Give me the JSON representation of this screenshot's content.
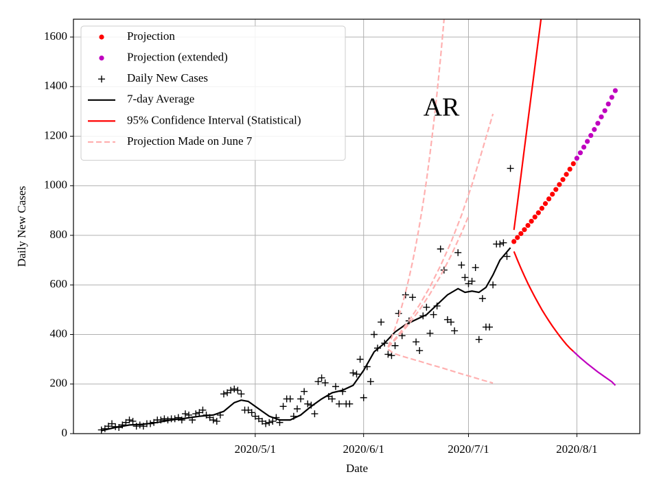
{
  "chart_data": {
    "type": "line",
    "annotation": "AR",
    "xlabel": "Date",
    "ylabel": "Daily New Cases",
    "xlim": [
      "2020/3/10",
      "2020/8/19"
    ],
    "xticks": [
      "2020/5/1",
      "2020/6/1",
      "2020/7/1",
      "2020/8/1"
    ],
    "ylim": [
      0,
      1672
    ],
    "yticks": [
      0,
      200,
      400,
      600,
      800,
      1000,
      1200,
      1400,
      1600
    ],
    "grid": true,
    "legend": "upper left",
    "series": [
      {
        "name": "Projection",
        "color": "#ff0000",
        "marker": "dot",
        "x": [
          "2020/7/14",
          "2020/7/15",
          "2020/7/16",
          "2020/7/17",
          "2020/7/18",
          "2020/7/19",
          "2020/7/20",
          "2020/7/21",
          "2020/7/22",
          "2020/7/23",
          "2020/7/24",
          "2020/7/25",
          "2020/7/26",
          "2020/7/27",
          "2020/7/28",
          "2020/7/29",
          "2020/7/30",
          "2020/7/31"
        ],
        "values": [
          775,
          791,
          807,
          823,
          840,
          857,
          874,
          891,
          909,
          928,
          947,
          966,
          985,
          1005,
          1025,
          1046,
          1067,
          1089
        ]
      },
      {
        "name": "Projection (extended)",
        "color": "#bf00bf",
        "marker": "dot",
        "x": [
          "2020/8/1",
          "2020/8/2",
          "2020/8/3",
          "2020/8/4",
          "2020/8/5",
          "2020/8/6",
          "2020/8/7",
          "2020/8/8",
          "2020/8/9",
          "2020/8/10",
          "2020/8/11",
          "2020/8/12"
        ],
        "values": [
          1111,
          1133,
          1156,
          1179,
          1203,
          1227,
          1252,
          1278,
          1303,
          1330,
          1357,
          1384
        ]
      },
      {
        "name": "Daily New Cases",
        "color": "#000000",
        "marker": "plus",
        "x": [
          "2020/3/18",
          "2020/3/19",
          "2020/3/20",
          "2020/3/21",
          "2020/3/22",
          "2020/3/23",
          "2020/3/24",
          "2020/3/25",
          "2020/3/26",
          "2020/3/27",
          "2020/3/28",
          "2020/3/29",
          "2020/3/30",
          "2020/3/31",
          "2020/4/1",
          "2020/4/2",
          "2020/4/3",
          "2020/4/4",
          "2020/4/5",
          "2020/4/6",
          "2020/4/7",
          "2020/4/8",
          "2020/4/9",
          "2020/4/10",
          "2020/4/11",
          "2020/4/12",
          "2020/4/13",
          "2020/4/14",
          "2020/4/15",
          "2020/4/16",
          "2020/4/17",
          "2020/4/18",
          "2020/4/19",
          "2020/4/20",
          "2020/4/21",
          "2020/4/22",
          "2020/4/23",
          "2020/4/24",
          "2020/4/25",
          "2020/4/26",
          "2020/4/27",
          "2020/4/28",
          "2020/4/29",
          "2020/4/30",
          "2020/5/1",
          "2020/5/2",
          "2020/5/3",
          "2020/5/4",
          "2020/5/5",
          "2020/5/6",
          "2020/5/7",
          "2020/5/8",
          "2020/5/9",
          "2020/5/10",
          "2020/5/11",
          "2020/5/12",
          "2020/5/13",
          "2020/5/14",
          "2020/5/15",
          "2020/5/16",
          "2020/5/17",
          "2020/5/18",
          "2020/5/19",
          "2020/5/20",
          "2020/5/21",
          "2020/5/22",
          "2020/5/23",
          "2020/5/24",
          "2020/5/25",
          "2020/5/26",
          "2020/5/27",
          "2020/5/28",
          "2020/5/29",
          "2020/5/30",
          "2020/5/31",
          "2020/6/1",
          "2020/6/2",
          "2020/6/3",
          "2020/6/4",
          "2020/6/5",
          "2020/6/6",
          "2020/6/7",
          "2020/6/8",
          "2020/6/9",
          "2020/6/10",
          "2020/6/11",
          "2020/6/12",
          "2020/6/13",
          "2020/6/14",
          "2020/6/15",
          "2020/6/16",
          "2020/6/17",
          "2020/6/18",
          "2020/6/19",
          "2020/6/20",
          "2020/6/21",
          "2020/6/22",
          "2020/6/23",
          "2020/6/24",
          "2020/6/25",
          "2020/6/26",
          "2020/6/27",
          "2020/6/28",
          "2020/6/29",
          "2020/6/30",
          "2020/7/1",
          "2020/7/2",
          "2020/7/3",
          "2020/7/4",
          "2020/7/5",
          "2020/7/6",
          "2020/7/7",
          "2020/7/8",
          "2020/7/9",
          "2020/7/10",
          "2020/7/11",
          "2020/7/12",
          "2020/7/13"
        ],
        "values": [
          15,
          20,
          30,
          40,
          28,
          25,
          35,
          45,
          55,
          50,
          30,
          35,
          30,
          40,
          40,
          45,
          55,
          55,
          60,
          55,
          60,
          60,
          65,
          55,
          80,
          75,
          55,
          80,
          85,
          95,
          75,
          65,
          55,
          50,
          75,
          160,
          165,
          175,
          180,
          175,
          160,
          95,
          95,
          85,
          70,
          60,
          50,
          40,
          45,
          50,
          65,
          45,
          110,
          140,
          140,
          70,
          100,
          140,
          170,
          120,
          115,
          80,
          210,
          225,
          205,
          150,
          140,
          190,
          120,
          170,
          120,
          120,
          245,
          240,
          300,
          145,
          270,
          210,
          400,
          345,
          450,
          365,
          320,
          315,
          355,
          485,
          395,
          560,
          455,
          550,
          370,
          335,
          475,
          510,
          405,
          480,
          515,
          745,
          660,
          460,
          450,
          415,
          730,
          680,
          630,
          605,
          615,
          670,
          380,
          545,
          430,
          430,
          600,
          765,
          765,
          770,
          715,
          1070
        ]
      },
      {
        "name": "7-day Average",
        "color": "#000000",
        "x": [
          "2020/3/18",
          "2020/3/22",
          "2020/3/26",
          "2020/3/30",
          "2020/4/3",
          "2020/4/7",
          "2020/4/11",
          "2020/4/15",
          "2020/4/19",
          "2020/4/22",
          "2020/4/25",
          "2020/4/27",
          "2020/4/29",
          "2020/5/2",
          "2020/5/5",
          "2020/5/8",
          "2020/5/11",
          "2020/5/14",
          "2020/5/17",
          "2020/5/20",
          "2020/5/23",
          "2020/5/26",
          "2020/5/29",
          "2020/6/1",
          "2020/6/4",
          "2020/6/7",
          "2020/6/10",
          "2020/6/13",
          "2020/6/16",
          "2020/6/19",
          "2020/6/22",
          "2020/6/25",
          "2020/6/28",
          "2020/6/30",
          "2020/7/2",
          "2020/7/4",
          "2020/7/6",
          "2020/7/8",
          "2020/7/10",
          "2020/7/13"
        ],
        "values": [
          12,
          25,
          35,
          38,
          45,
          55,
          62,
          70,
          75,
          90,
          125,
          135,
          130,
          100,
          70,
          55,
          55,
          75,
          110,
          140,
          165,
          175,
          195,
          255,
          330,
          365,
          410,
          440,
          460,
          480,
          520,
          560,
          585,
          570,
          575,
          570,
          590,
          640,
          700,
          750
        ]
      },
      {
        "name": "95% Confidence Interval (Statistical)",
        "color": "#ff0000",
        "x": [
          "2020/7/14",
          "2020/7/15",
          "2020/7/16",
          "2020/7/17",
          "2020/7/18",
          "2020/7/19",
          "2020/7/20",
          "2020/7/21",
          "2020/7/22"
        ],
        "values": [
          822,
          930,
          1040,
          1150,
          1260,
          1370,
          1480,
          1590,
          1700
        ]
      },
      {
        "name": "Projection Made on June 7",
        "color": "#ffb0b0",
        "dash": true,
        "x": [
          "2020/6/8",
          "2020/6/9",
          "2020/6/10",
          "2020/6/11",
          "2020/6/12",
          "2020/6/13",
          "2020/6/14",
          "2020/6/15",
          "2020/6/16",
          "2020/6/17",
          "2020/6/18",
          "2020/6/19",
          "2020/6/20",
          "2020/6/21",
          "2020/6/22",
          "2020/6/23",
          "2020/6/24",
          "2020/6/25"
        ],
        "values": [
          350,
          386,
          425,
          469,
          517,
          570,
          629,
          693,
          764,
          843,
          929,
          1024,
          1129,
          1245,
          1373,
          1514,
          1669,
          1841
        ]
      },
      {
        "color": "#ff0000",
        "x": [
          "2020/7/14",
          "2020/7/15",
          "2020/7/16",
          "2020/7/17",
          "2020/7/18",
          "2020/7/19",
          "2020/7/20",
          "2020/7/21",
          "2020/7/22",
          "2020/7/23",
          "2020/7/24",
          "2020/7/25",
          "2020/7/26",
          "2020/7/27",
          "2020/7/28",
          "2020/7/29",
          "2020/7/30",
          "2020/7/31"
        ],
        "values": [
          735,
          700,
          667,
          636,
          606,
          578,
          551,
          525,
          500,
          477,
          455,
          434,
          414,
          395,
          377,
          360,
          345,
          332
        ]
      },
      {
        "color": "#bf00bf",
        "x": [
          "2020/7/31",
          "2020/8/1",
          "2020/8/2",
          "2020/8/3",
          "2020/8/4",
          "2020/8/5",
          "2020/8/6",
          "2020/8/7",
          "2020/8/8",
          "2020/8/9",
          "2020/8/10",
          "2020/8/11",
          "2020/8/12"
        ],
        "values": [
          332,
          319,
          306,
          294,
          282,
          271,
          260,
          249,
          239,
          229,
          219,
          209,
          195
        ]
      },
      {
        "color": "#ffb0b0",
        "dash": true,
        "x": [
          "2020/6/8",
          "2020/6/11",
          "2020/6/14",
          "2020/6/17",
          "2020/6/20",
          "2020/6/23",
          "2020/6/26",
          "2020/6/29",
          "2020/7/2",
          "2020/7/5",
          "2020/7/8"
        ],
        "values": [
          350,
          400,
          456,
          520,
          593,
          677,
          772,
          881,
          1005,
          1146,
          1290
        ]
      },
      {
        "color": "#ffb0b0",
        "dash": true,
        "x": [
          "2020/6/8",
          "2020/6/11",
          "2020/6/14",
          "2020/6/17",
          "2020/6/20",
          "2020/6/23",
          "2020/6/26",
          "2020/6/29",
          "2020/7/1"
        ],
        "values": [
          348,
          393,
          443,
          500,
          564,
          636,
          718,
          810,
          877
        ]
      },
      {
        "color": "#ffb0b0",
        "dash": true,
        "x": [
          "2020/6/8",
          "2020/6/9",
          "2020/6/10",
          "2020/6/11",
          "2020/6/14",
          "2020/6/17",
          "2020/6/20",
          "2020/6/23",
          "2020/6/26",
          "2020/6/29",
          "2020/7/2",
          "2020/7/5",
          "2020/7/8"
        ],
        "values": [
          340,
          330,
          322,
          317,
          304,
          292,
          279,
          267,
          254,
          241,
          229,
          216,
          204
        ]
      }
    ]
  }
}
